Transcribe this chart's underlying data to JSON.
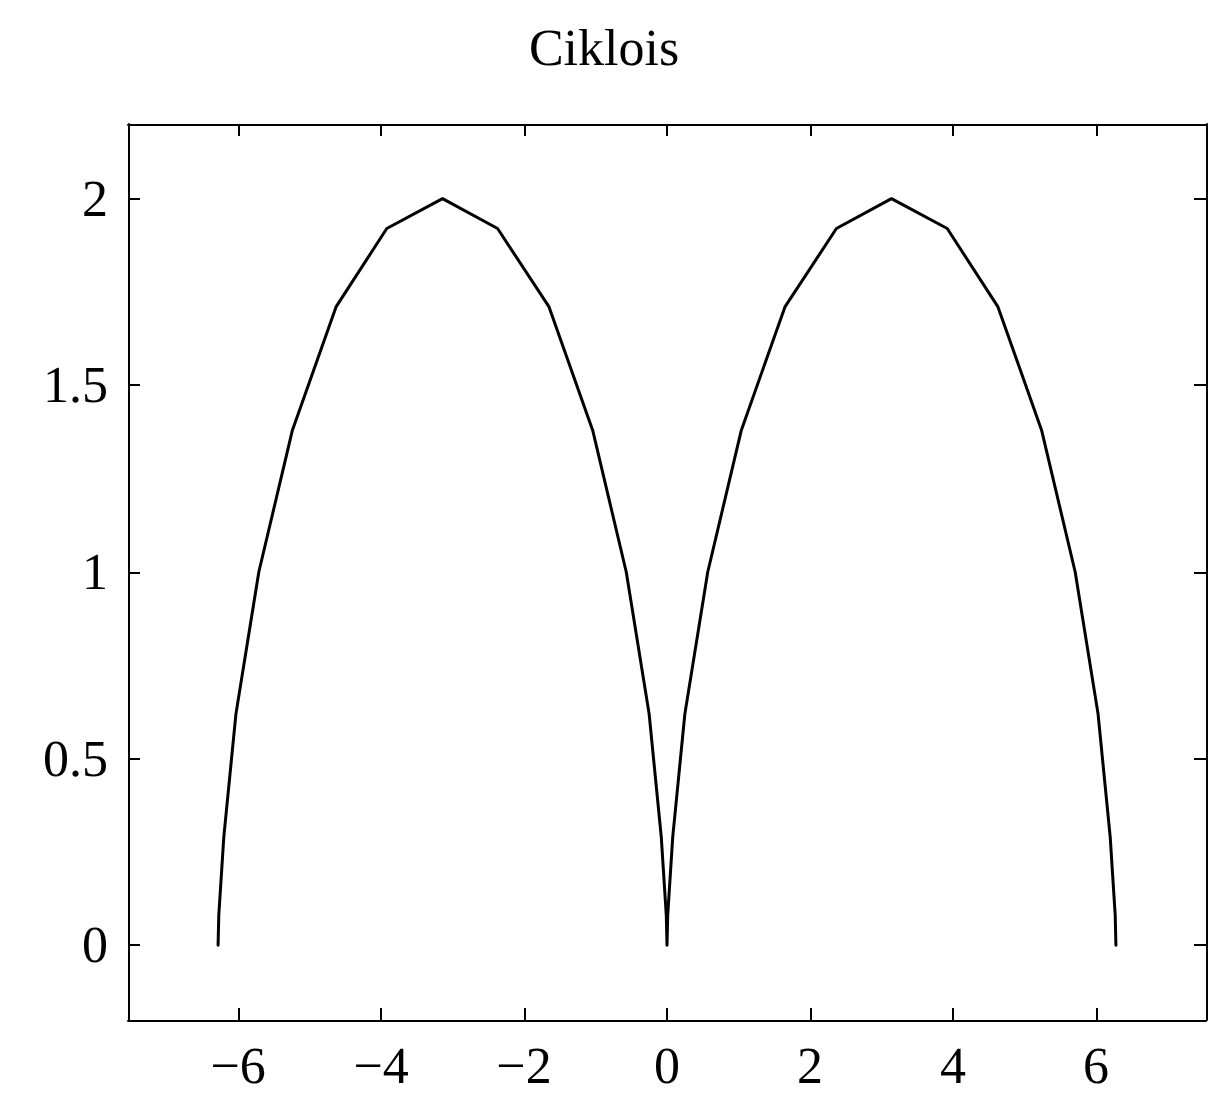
{
  "chart_data": {
    "type": "line",
    "title": "Ciklois",
    "x": [
      -6.28,
      -6.27,
      -6.2,
      -6.03,
      -5.71,
      -5.24,
      -4.63,
      -3.92,
      -3.14,
      -2.37,
      -1.65,
      -1.04,
      -0.57,
      -0.25,
      -0.08,
      -0.01,
      0,
      0.01,
      0.08,
      0.25,
      0.57,
      1.04,
      1.65,
      2.37,
      3.14,
      3.92,
      4.63,
      5.24,
      5.71,
      6.03,
      6.2,
      6.27,
      6.28
    ],
    "series": [
      {
        "color": "#000000",
        "values": [
          0,
          0.08,
          0.29,
          0.62,
          1,
          1.38,
          1.71,
          1.92,
          2,
          1.92,
          1.71,
          1.38,
          1,
          0.62,
          0.29,
          0.08,
          0,
          0.08,
          0.29,
          0.62,
          1,
          1.38,
          1.71,
          1.92,
          2,
          1.92,
          1.71,
          1.38,
          1,
          0.62,
          0.29,
          0.08,
          0
        ]
      }
    ],
    "xlim": [
      -7.54,
      7.54
    ],
    "xticks": [
      -6,
      -4,
      -2,
      0,
      2,
      4,
      6
    ],
    "ylim": [
      -0.2,
      2.2
    ],
    "yticks": [
      0,
      0.5,
      1,
      1.5,
      2
    ],
    "grid": false,
    "marker": "none",
    "line_style": "solid"
  }
}
